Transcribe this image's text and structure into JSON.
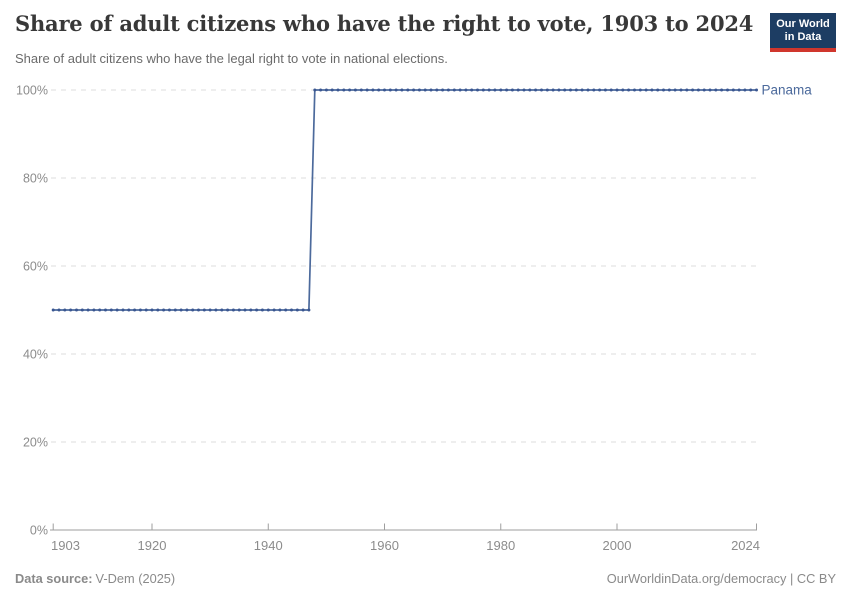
{
  "header": {
    "title": "Share of adult citizens who have the right to vote, 1903 to 2024",
    "subtitle": "Share of adult citizens who have the legal right to vote in national elections.",
    "logo": {
      "line1": "Our World",
      "line2": "in Data"
    }
  },
  "chart_data": {
    "type": "line",
    "title": "Share of adult citizens who have the right to vote, 1903 to 2024",
    "entity": "Panama",
    "xlabel": "",
    "ylabel": "",
    "xlim": [
      1903,
      2024
    ],
    "ylim": [
      0,
      100
    ],
    "x_ticks": [
      1903,
      1920,
      1940,
      1960,
      1980,
      2000,
      2024
    ],
    "y_ticks": [
      0,
      20,
      40,
      60,
      80,
      100
    ],
    "y_tick_suffix": "%",
    "grid": "horizontal-dashed",
    "legend_position": "end-of-line-label",
    "series": [
      {
        "name": "Panama",
        "segments": [
          {
            "from_year": 1903,
            "to_year": 1947,
            "value": 50
          },
          {
            "from_year": 1948,
            "to_year": 2024,
            "value": 100
          }
        ]
      }
    ],
    "colors": {
      "line": "#4c6a9c",
      "marker": "#3a5691",
      "entity_label": "#4c6a9c",
      "grid": "#dcdcdc",
      "axis": "#9e9e9e",
      "tick_label": "#8c8c8c"
    }
  },
  "footer": {
    "source_label": "Data source:",
    "source_value": "V-Dem (2025)",
    "right_text": "OurWorldinData.org/democracy | CC BY"
  }
}
